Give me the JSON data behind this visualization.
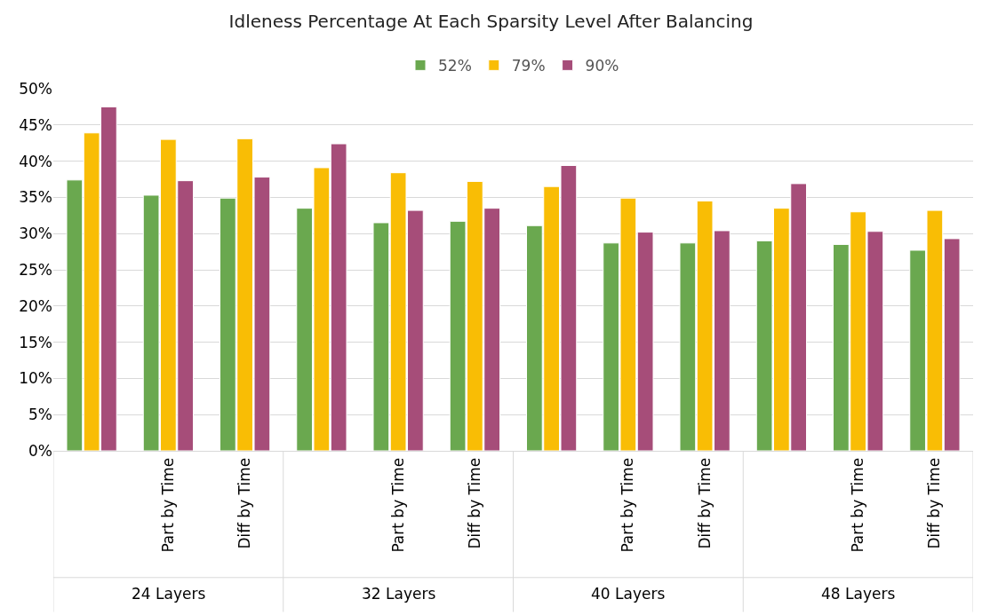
{
  "chart_data": {
    "type": "bar",
    "title": "Idleness Percentage At Each Sparsity Level After Balancing",
    "categories": [
      null,
      "Part by Time",
      "Diff by Time",
      null,
      "Part by Time",
      "Diff by Time",
      null,
      "Part by Time",
      "Diff by Time",
      null,
      "Part by Time",
      "Diff by Time"
    ],
    "series": [
      {
        "name": "52%",
        "color": "#6aa84f",
        "values": [
          37.4,
          35.3,
          34.9,
          33.5,
          31.5,
          31.7,
          31.1,
          28.7,
          28.7,
          29.0,
          28.5,
          27.7
        ]
      },
      {
        "name": "79%",
        "color": "#f9bd05",
        "values": [
          43.9,
          43.0,
          43.1,
          39.1,
          38.4,
          37.2,
          36.5,
          34.9,
          34.5,
          33.5,
          33.0,
          33.2
        ]
      },
      {
        "name": "90%",
        "color": "#a64d79",
        "values": [
          47.5,
          37.3,
          37.8,
          42.4,
          33.2,
          33.5,
          39.4,
          30.2,
          30.4,
          36.9,
          30.3,
          29.3
        ]
      }
    ],
    "annotations": [
      "24 Layers",
      "32 Layers",
      "40 Layers",
      "48 Layers"
    ],
    "ylim": [
      0,
      50
    ],
    "yticks": [
      {
        "value": 0,
        "label": "0%"
      },
      {
        "value": 5,
        "label": "5%"
      },
      {
        "value": 10,
        "label": "10%"
      },
      {
        "value": 15,
        "label": "15%"
      },
      {
        "value": 20,
        "label": "20%"
      },
      {
        "value": 25,
        "label": "25%"
      },
      {
        "value": 30,
        "label": "30%"
      },
      {
        "value": 35,
        "label": "35%"
      },
      {
        "value": 40,
        "label": "40%"
      },
      {
        "value": 45,
        "label": "45%"
      },
      {
        "value": 50,
        "label": "50%"
      }
    ],
    "grid": "y",
    "legend": "top"
  }
}
